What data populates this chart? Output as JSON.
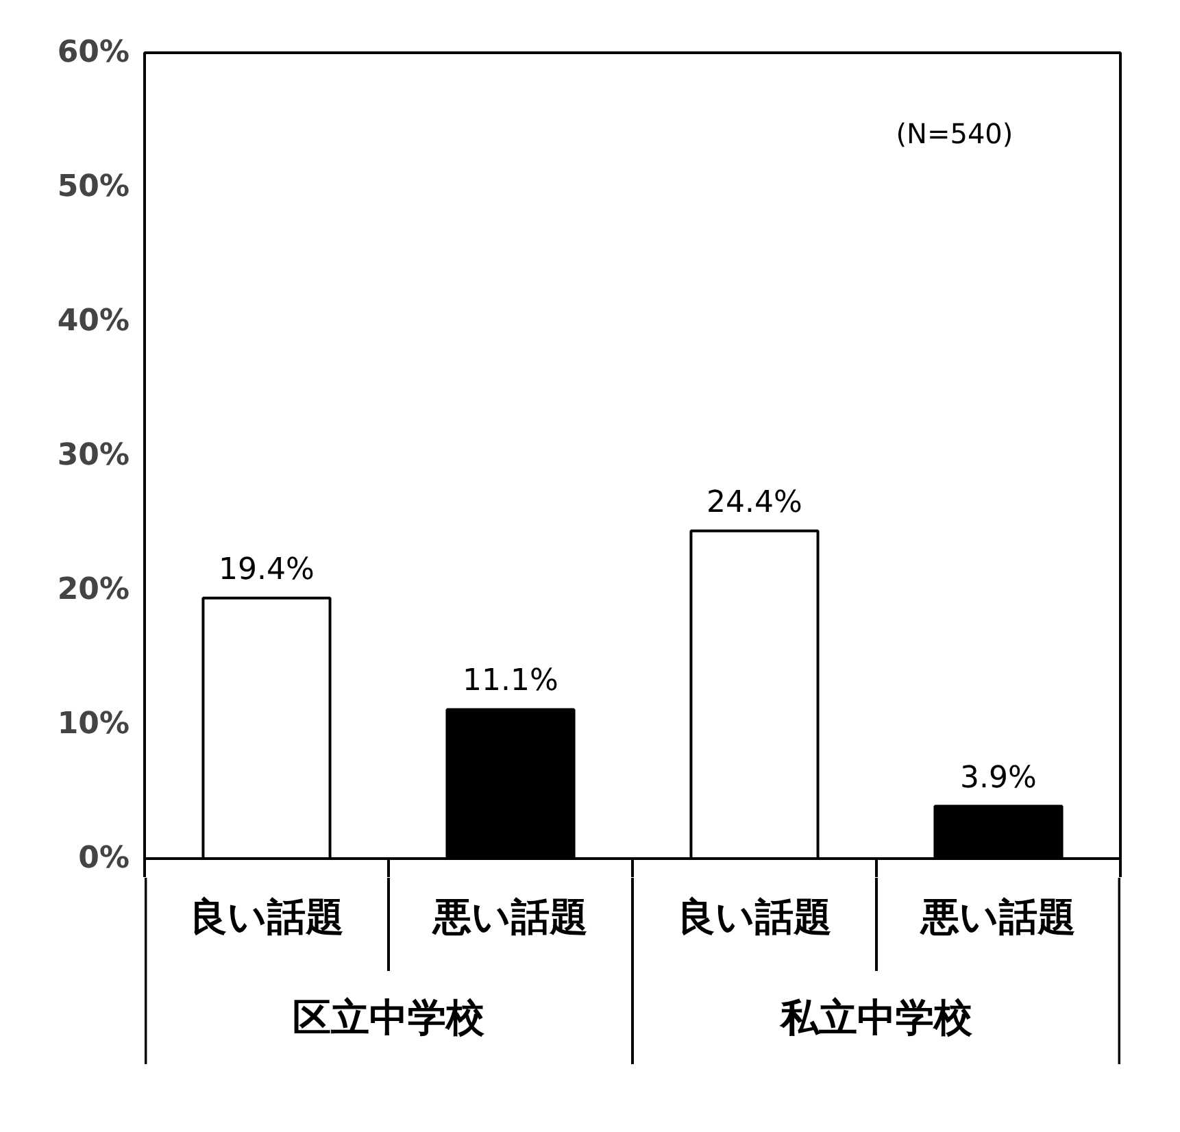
{
  "chart_data": {
    "type": "bar",
    "categories": [
      "良い話題",
      "悪い話題",
      "良い話題",
      "悪い話題"
    ],
    "values": [
      19.4,
      11.1,
      24.4,
      3.9
    ],
    "colors": [
      "#ffffff",
      "#000000",
      "#ffffff",
      "#000000"
    ],
    "value_labels": [
      "19.4%",
      "11.1%",
      "24.4%",
      "3.9%"
    ],
    "ylim": [
      0,
      60
    ],
    "yticks": [
      {
        "value": 0,
        "label": "0%"
      },
      {
        "value": 10,
        "label": "10%"
      },
      {
        "value": 20,
        "label": "20%"
      },
      {
        "value": 30,
        "label": "30%"
      },
      {
        "value": 40,
        "label": "40%"
      },
      {
        "value": 50,
        "label": "50%"
      },
      {
        "value": 60,
        "label": "60%"
      }
    ],
    "grid": false,
    "annotations": [
      "(N=540)",
      "区立中学校",
      "私立中学校"
    ]
  }
}
